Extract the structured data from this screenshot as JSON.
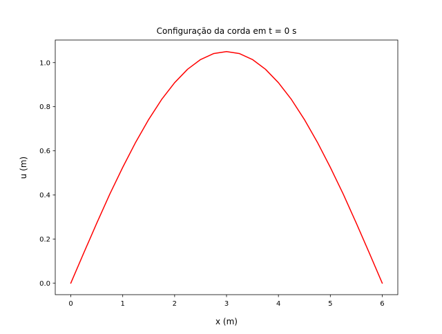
{
  "chart_data": {
    "type": "line",
    "title": "Configuração da corda em t = 0 s",
    "xlabel": "x (m)",
    "ylabel": "u (m)",
    "xlim": [
      -0.3,
      6.3
    ],
    "ylim": [
      -0.0525,
      1.1025
    ],
    "xticks": [
      0,
      1,
      2,
      3,
      4,
      5,
      6
    ],
    "xtick_labels": [
      "0",
      "1",
      "2",
      "3",
      "4",
      "5",
      "6"
    ],
    "yticks": [
      0.0,
      0.2,
      0.4,
      0.6,
      0.8,
      1.0
    ],
    "ytick_labels": [
      "0.0",
      "0.2",
      "0.4",
      "0.6",
      "0.8",
      "1.0"
    ],
    "grid": false,
    "series": [
      {
        "color": "#ff0000",
        "x": [
          0,
          0.25,
          0.5,
          0.75,
          1,
          1.25,
          1.5,
          1.75,
          2,
          2.25,
          2.5,
          2.75,
          3,
          3.25,
          3.5,
          3.75,
          4,
          4.25,
          4.5,
          4.75,
          5,
          5.25,
          5.5,
          5.75,
          6
        ],
        "y": [
          0,
          0.137,
          0.272,
          0.403,
          0.525,
          0.639,
          0.742,
          0.833,
          0.909,
          0.97,
          1.014,
          1.041,
          1.05,
          1.041,
          1.014,
          0.97,
          0.909,
          0.833,
          0.742,
          0.639,
          0.525,
          0.403,
          0.272,
          0.137,
          0
        ]
      }
    ]
  }
}
